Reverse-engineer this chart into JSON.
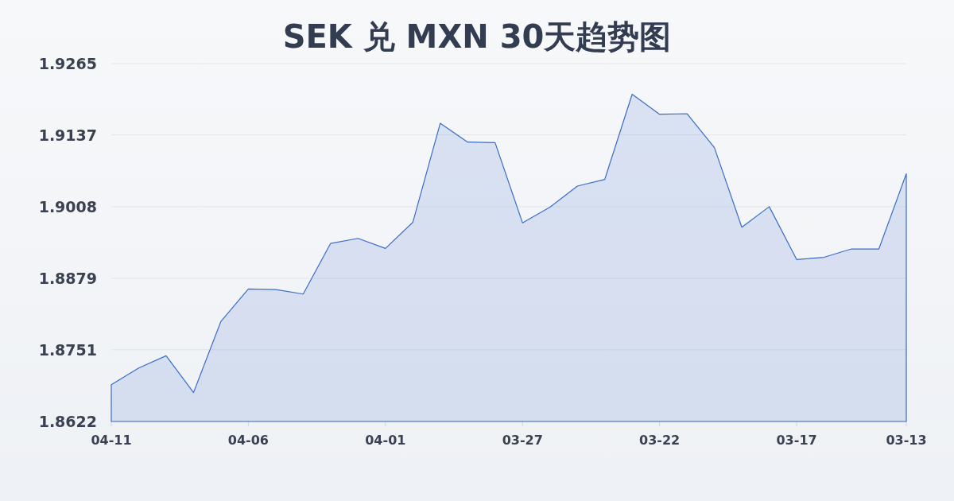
{
  "chart_data": {
    "type": "area",
    "title": "SEK 兑 MXN 30天趋势图",
    "categories": [
      "04-11",
      null,
      null,
      null,
      null,
      "04-06",
      null,
      null,
      null,
      null,
      "04-01",
      null,
      null,
      null,
      null,
      "03-27",
      null,
      null,
      null,
      null,
      "03-22",
      null,
      null,
      null,
      null,
      "03-17",
      null,
      null,
      null,
      "03-13"
    ],
    "series": [
      {
        "color": "#3a6cc8",
        "values": [
          1.8688,
          1.8718,
          1.874,
          1.8674,
          1.8802,
          1.886,
          1.8859,
          1.8851,
          1.8942,
          1.8951,
          1.8933,
          1.898,
          1.9158,
          1.9124,
          1.9123,
          1.8979,
          1.9007,
          1.9045,
          1.9057,
          1.921,
          1.9174,
          1.9175,
          1.9114,
          1.8971,
          1.9008,
          1.8913,
          1.8917,
          1.8932,
          1.8932,
          1.9067
        ]
      }
    ],
    "ylim": [
      1.8622,
      1.9265
    ],
    "yticks": [
      1.8622,
      1.8751,
      1.8879,
      1.9008,
      1.9137,
      1.9265
    ],
    "grid": "y"
  }
}
